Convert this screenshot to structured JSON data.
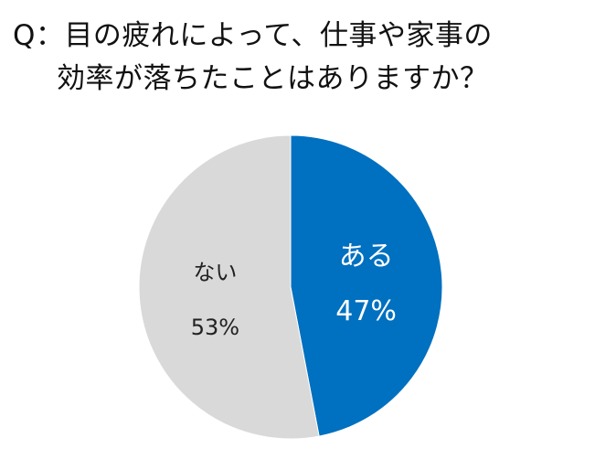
{
  "title": {
    "line1": "Q：目の疲れによって、仕事や家事の",
    "line2": "効率が落ちたことはありますか？"
  },
  "chart_data": {
    "type": "pie",
    "title": "Q：目の疲れによって、仕事や家事の効率が落ちたことはありますか？",
    "start_angle_deg": 0,
    "direction": "clockwise",
    "legend": "none",
    "slices": [
      {
        "label": "ある",
        "value": 47,
        "value_label": "47%",
        "color": "#0070c0",
        "text_color": "#ffffff"
      },
      {
        "label": "ない",
        "value": 53,
        "value_label": "53%",
        "color": "#d9d9d9",
        "text_color": "#222222"
      }
    ]
  }
}
